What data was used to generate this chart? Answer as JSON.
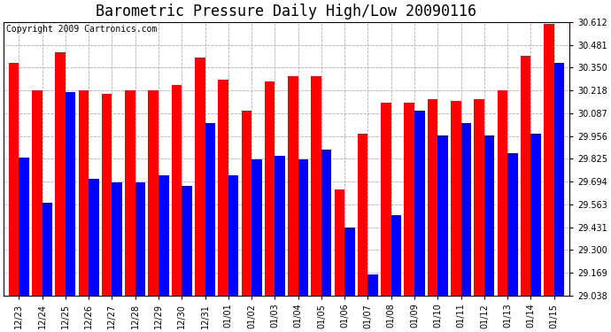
{
  "title": "Barometric Pressure Daily High/Low 20090116",
  "copyright": "Copyright 2009 Cartronics.com",
  "labels": [
    "12/23",
    "12/24",
    "12/25",
    "12/26",
    "12/27",
    "12/28",
    "12/29",
    "12/30",
    "12/31",
    "01/01",
    "01/02",
    "01/03",
    "01/04",
    "01/05",
    "01/06",
    "01/07",
    "01/08",
    "01/09",
    "01/10",
    "01/11",
    "01/12",
    "01/13",
    "01/14",
    "01/15"
  ],
  "highs": [
    30.38,
    30.22,
    30.44,
    30.22,
    30.2,
    30.22,
    30.22,
    30.25,
    30.41,
    30.28,
    30.1,
    30.27,
    30.3,
    30.3,
    29.65,
    29.97,
    30.15,
    30.15,
    30.17,
    30.16,
    30.17,
    30.22,
    30.42,
    30.6
  ],
  "lows": [
    29.83,
    29.57,
    30.21,
    29.71,
    29.69,
    29.69,
    29.73,
    29.67,
    30.03,
    29.73,
    29.82,
    29.84,
    29.82,
    29.88,
    29.43,
    29.16,
    29.5,
    30.1,
    29.96,
    30.03,
    29.96,
    29.86,
    29.97,
    30.38
  ],
  "high_color": "#ff0000",
  "low_color": "#0000ff",
  "bg_color": "#ffffff",
  "plot_bg_color": "#ffffff",
  "grid_color": "#b0b0b0",
  "ymin": 29.038,
  "ymax": 30.612,
  "yticks": [
    29.038,
    29.169,
    29.3,
    29.431,
    29.563,
    29.694,
    29.825,
    29.956,
    30.087,
    30.218,
    30.35,
    30.481,
    30.612
  ],
  "title_fontsize": 12,
  "copyright_fontsize": 7,
  "tick_fontsize": 7,
  "bar_width": 0.44,
  "fig_width": 6.9,
  "fig_height": 3.75
}
